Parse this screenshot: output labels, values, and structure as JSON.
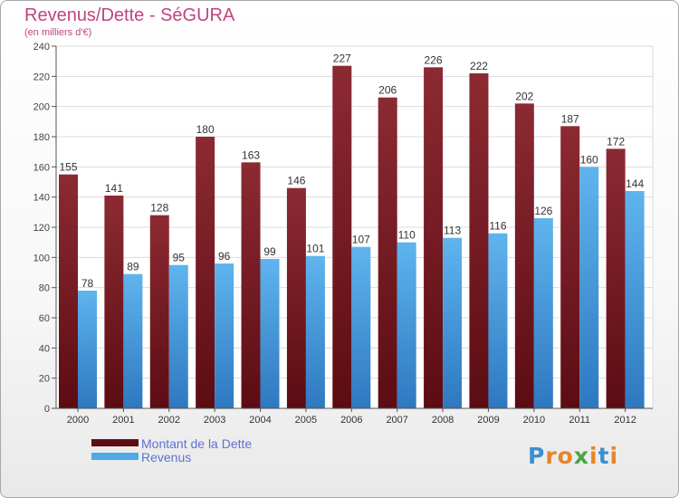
{
  "chart_data": {
    "type": "bar",
    "title": "Revenus/Dette - SéGURA",
    "subtitle": "(en milliers d'€)",
    "categories": [
      "2000",
      "2001",
      "2002",
      "2003",
      "2004",
      "2005",
      "2006",
      "2007",
      "2008",
      "2009",
      "2010",
      "2011",
      "2012"
    ],
    "series": [
      {
        "name": "Montant de la Dette",
        "values": [
          155,
          141,
          128,
          180,
          163,
          146,
          227,
          206,
          226,
          222,
          202,
          187,
          172
        ],
        "color": "#7b1e26"
      },
      {
        "name": "Revenus",
        "values": [
          78,
          89,
          95,
          96,
          99,
          101,
          107,
          110,
          113,
          116,
          126,
          160,
          144
        ],
        "color": "#4fa9e6"
      }
    ],
    "ylim": [
      0,
      240
    ],
    "yticks": [
      0,
      20,
      40,
      60,
      80,
      100,
      120,
      140,
      160,
      180,
      200,
      220,
      240
    ],
    "grid": true,
    "legend_position": "bottom-left"
  },
  "logo": {
    "letters": [
      {
        "ch": "P",
        "color": "#3d8fd1"
      },
      {
        "ch": "r",
        "color": "#e5862a"
      },
      {
        "ch": "o",
        "color": "#e5862a"
      },
      {
        "ch": "x",
        "color": "#4aa542"
      },
      {
        "ch": "i",
        "color": "#e5862a"
      },
      {
        "ch": "t",
        "color": "#3d8fd1"
      },
      {
        "ch": "i",
        "color": "#e5862a"
      }
    ]
  }
}
